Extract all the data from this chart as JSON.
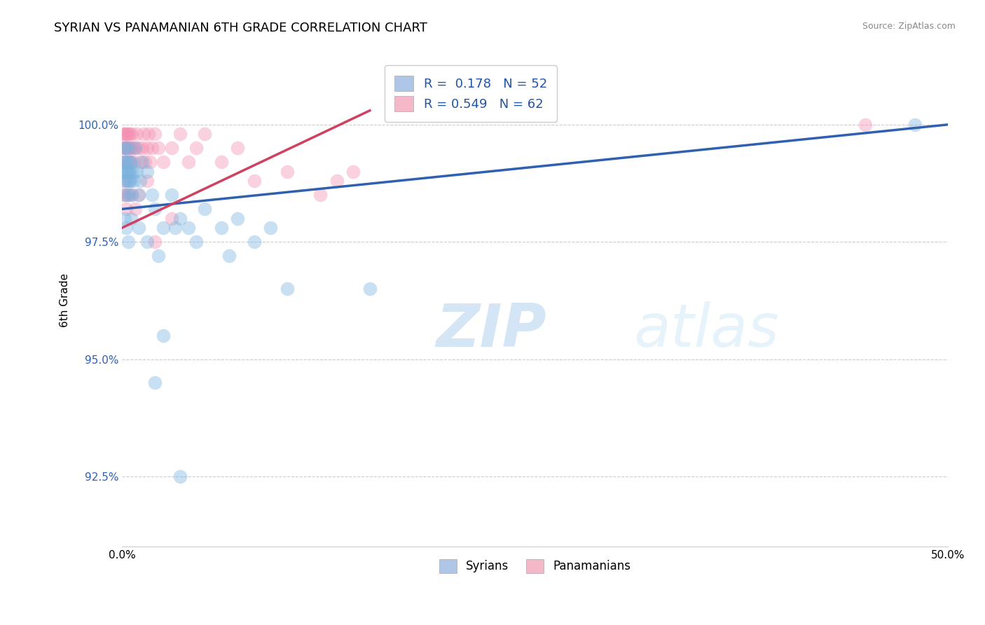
{
  "title": "SYRIAN VS PANAMANIAN 6TH GRADE CORRELATION CHART",
  "ylabel": "6th Grade",
  "source": "Source: ZipAtlas.com",
  "xlim": [
    0.0,
    50.0
  ],
  "ylim": [
    91.0,
    101.5
  ],
  "yticks": [
    92.5,
    95.0,
    97.5,
    100.0
  ],
  "xticks": [
    0.0,
    10.0,
    20.0,
    30.0,
    40.0,
    50.0
  ],
  "xtick_labels": [
    "0.0%",
    "",
    "",
    "",
    "",
    "50.0%"
  ],
  "ytick_labels": [
    "92.5%",
    "95.0%",
    "97.5%",
    "100.0%"
  ],
  "blue_color": "#7ab3e0",
  "pink_color": "#f48fb1",
  "blue_line_color": "#3060b0",
  "pink_line_color": "#d04060",
  "syrians_x": [
    0.05,
    0.08,
    0.1,
    0.12,
    0.15,
    0.18,
    0.2,
    0.22,
    0.25,
    0.28,
    0.3,
    0.32,
    0.35,
    0.38,
    0.4,
    0.42,
    0.45,
    0.48,
    0.5,
    0.55,
    0.6,
    0.65,
    0.7,
    0.8,
    0.9,
    1.0,
    1.1,
    1.2,
    1.5,
    1.8,
    2.0,
    2.5,
    3.0,
    3.5,
    4.0,
    5.0,
    6.0,
    7.0,
    1.5,
    2.2,
    3.2,
    4.5,
    6.5,
    8.0,
    9.0,
    0.15,
    0.25,
    0.35,
    0.55,
    1.0,
    15.0,
    48.0
  ],
  "syrians_y": [
    99.0,
    99.2,
    99.5,
    99.0,
    98.8,
    99.2,
    99.5,
    98.5,
    99.0,
    98.8,
    99.2,
    99.0,
    98.8,
    99.5,
    99.0,
    98.5,
    99.2,
    99.0,
    98.8,
    99.2,
    98.5,
    99.0,
    98.8,
    99.5,
    99.0,
    98.5,
    98.8,
    99.2,
    99.0,
    98.5,
    98.2,
    97.8,
    98.5,
    98.0,
    97.8,
    98.2,
    97.8,
    98.0,
    97.5,
    97.2,
    97.8,
    97.5,
    97.2,
    97.5,
    97.8,
    98.0,
    97.8,
    97.5,
    98.0,
    97.8,
    96.5,
    100.0
  ],
  "panamanians_x": [
    0.05,
    0.08,
    0.1,
    0.12,
    0.15,
    0.18,
    0.2,
    0.22,
    0.25,
    0.28,
    0.3,
    0.32,
    0.35,
    0.38,
    0.4,
    0.42,
    0.45,
    0.48,
    0.5,
    0.55,
    0.6,
    0.65,
    0.7,
    0.8,
    0.9,
    1.0,
    1.1,
    1.2,
    1.3,
    1.4,
    1.5,
    1.6,
    1.7,
    1.8,
    2.0,
    2.2,
    2.5,
    3.0,
    3.5,
    4.0,
    4.5,
    5.0,
    6.0,
    7.0,
    8.0,
    10.0,
    12.0,
    13.0,
    14.0,
    0.08,
    0.12,
    0.18,
    0.25,
    0.35,
    0.45,
    0.6,
    0.8,
    1.0,
    1.5,
    2.0,
    3.0,
    45.0
  ],
  "panamanians_y": [
    99.8,
    99.5,
    99.8,
    99.2,
    99.5,
    99.8,
    99.5,
    99.2,
    99.5,
    99.8,
    99.5,
    99.2,
    99.8,
    99.5,
    99.2,
    99.5,
    99.8,
    99.5,
    99.2,
    99.5,
    99.8,
    99.5,
    99.2,
    99.5,
    99.8,
    99.5,
    99.2,
    99.5,
    99.8,
    99.2,
    99.5,
    99.8,
    99.2,
    99.5,
    99.8,
    99.5,
    99.2,
    99.5,
    99.8,
    99.2,
    99.5,
    99.8,
    99.2,
    99.5,
    98.8,
    99.0,
    98.5,
    98.8,
    99.0,
    98.5,
    98.8,
    98.5,
    98.2,
    98.5,
    98.8,
    98.5,
    98.2,
    98.5,
    98.8,
    97.5,
    98.0,
    100.0
  ],
  "background_color": "#ffffff",
  "grid_color": "#cccccc",
  "blue_scatter_y_outliers": [
    [
      2.0,
      94.5
    ],
    [
      2.5,
      95.5
    ],
    [
      10.0,
      96.5
    ],
    [
      3.5,
      92.5
    ]
  ]
}
